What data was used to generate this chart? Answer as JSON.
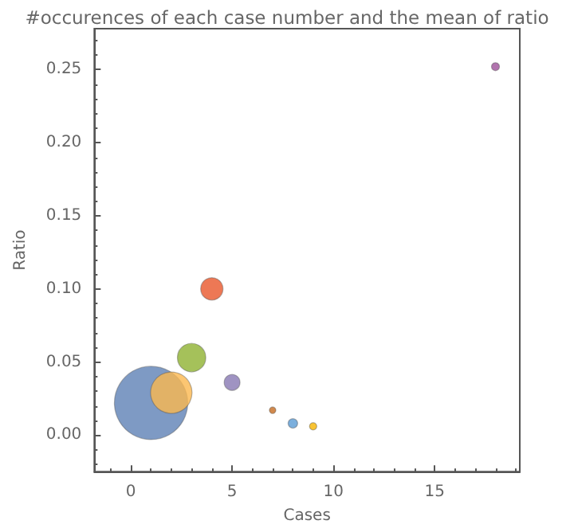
{
  "chart_data": {
    "type": "bubble",
    "title": "#occurences of each case number and the mean of ratio",
    "xlabel": "Cases",
    "ylabel": "Ratio",
    "x": [
      1,
      2,
      3,
      4,
      5,
      7,
      8,
      9,
      18
    ],
    "values": [
      0.022,
      0.029,
      0.053,
      0.1,
      0.036,
      0.017,
      0.008,
      0.006,
      0.252
    ],
    "sizes": [
      1,
      0.32,
      0.15,
      0.093,
      0.047,
      0.008,
      0.017,
      0.01,
      0.012
    ],
    "colors": [
      "#5e81b5",
      "#fbb84f",
      "#8fb131",
      "#e8562a",
      "#8778b3",
      "#c66c21",
      "#5a9bd4",
      "#f6b400",
      "#9e519a"
    ],
    "xlim": [
      -1.8,
      19.2
    ],
    "ylim": [
      -0.025,
      0.278
    ],
    "xticks": [
      0,
      5,
      10,
      15
    ],
    "yticks": [
      {
        "value": 0,
        "label": "0.00"
      },
      {
        "value": 0.05,
        "label": "0.05"
      },
      {
        "value": 0.1,
        "label": "0.10"
      },
      {
        "value": 0.15,
        "label": "0.15"
      },
      {
        "value": 0.2,
        "label": "0.20"
      },
      {
        "value": 0.25,
        "label": "0.25"
      }
    ],
    "grid": false,
    "marker": "circle"
  }
}
